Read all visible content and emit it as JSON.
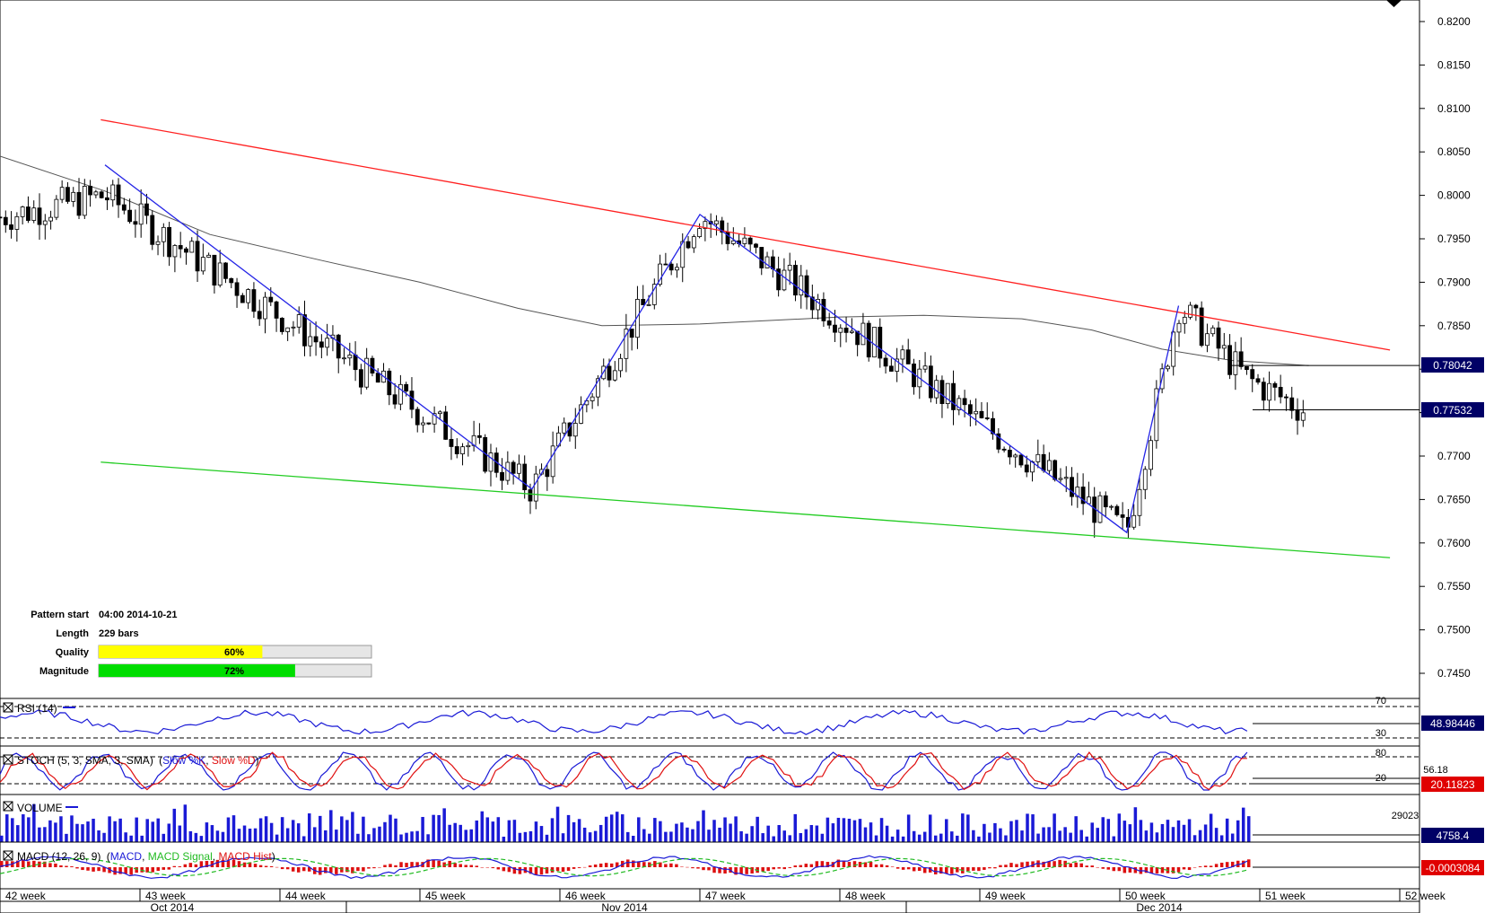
{
  "chart_data": {
    "type": "candlestick",
    "price_axis": {
      "ticks": [
        "0.8200",
        "0.8150",
        "0.8100",
        "0.8050",
        "0.8000",
        "0.7950",
        "0.7900",
        "0.7850",
        "0.7800",
        "0.7750",
        "0.7700",
        "0.7650",
        "0.7600",
        "0.7550",
        "0.7500",
        "0.7450"
      ],
      "ylim": [
        0.7415,
        0.8225
      ]
    },
    "price_labels": {
      "level_1": "0.78042",
      "level_2": "0.77532"
    },
    "price_label_values": [
      0.78042,
      0.77532
    ],
    "pattern_info": {
      "pattern_start_label": "Pattern start",
      "pattern_start_value": "04:00 2014-10-21",
      "length_label": "Length",
      "length_value": "229 bars",
      "quality_label": "Quality",
      "quality_value": "60%",
      "quality_fraction": 0.6,
      "magnitude_label": "Magnitude",
      "magnitude_value": "72%",
      "magnitude_fraction": 0.72
    },
    "zigzag": [
      {
        "week": 42.75,
        "price": 0.8035
      },
      {
        "week": 45.8,
        "price": 0.7662
      },
      {
        "week": 47.0,
        "price": 0.7978
      },
      {
        "week": 50.05,
        "price": 0.7612
      },
      {
        "week": 50.42,
        "price": 0.7873
      }
    ],
    "resistance_line": [
      {
        "week": 42.72,
        "price": 0.8087
      },
      {
        "week": 51.93,
        "price": 0.7822
      }
    ],
    "support_line": [
      {
        "week": 42.72,
        "price": 0.7693
      },
      {
        "week": 51.93,
        "price": 0.7583
      }
    ],
    "moving_average": [
      {
        "week": 42.0,
        "price": 0.8045
      },
      {
        "week": 42.75,
        "price": 0.8005
      },
      {
        "week": 43.5,
        "price": 0.7955
      },
      {
        "week": 44.3,
        "price": 0.7925
      },
      {
        "week": 45.0,
        "price": 0.79
      },
      {
        "week": 45.7,
        "price": 0.787
      },
      {
        "week": 46.3,
        "price": 0.785
      },
      {
        "week": 47.0,
        "price": 0.7852
      },
      {
        "week": 48.0,
        "price": 0.786
      },
      {
        "week": 48.6,
        "price": 0.7862
      },
      {
        "week": 49.3,
        "price": 0.7858
      },
      {
        "week": 49.8,
        "price": 0.7845
      },
      {
        "week": 50.3,
        "price": 0.7823
      },
      {
        "week": 50.8,
        "price": 0.781
      },
      {
        "week": 51.35,
        "price": 0.7804
      }
    ],
    "indicators": {
      "rsi": {
        "title": "RSI (14)",
        "upper": "70",
        "lower": "30",
        "value": "48.98446"
      },
      "stoch": {
        "title_prefix": "STOCH (5, 3, SMA, 3, SMA)",
        "series_1": "Slow %K",
        "series_2": "Slow %D",
        "upper": "80",
        "lower": "20",
        "value_1": "56.18",
        "value_2": "20.11823"
      },
      "volume": {
        "title": "VOLUME",
        "max": "29023",
        "value": "4758.4"
      },
      "macd": {
        "title_prefix": "MACD (12, 26, 9)",
        "series_1": "MACD",
        "series_2": "MACD Signal",
        "series_3": "MACD Hist",
        "value": "-0.0003084"
      }
    },
    "time_axis": {
      "weeks": [
        "42 week",
        "43 week",
        "44 week",
        "45 week",
        "46 week",
        "47 week",
        "48 week",
        "49 week",
        "50 week",
        "51 week",
        "52 week"
      ],
      "months": [
        "Oct 2014",
        "Nov 2014",
        "Dec 2014"
      ]
    }
  },
  "colors": {
    "up": "#ffffff",
    "down": "#000000",
    "resistance": "#ff2020",
    "support": "#22cc22",
    "zigzag": "#2424e6",
    "ma": "#555555",
    "rsi_line": "#1a1ad6",
    "stoch_k": "#1a1ad6",
    "stoch_d": "#e01010",
    "volume_bar": "#1a1ad6",
    "macd_line": "#1a1ad6",
    "macd_signal": "#22bb22",
    "macd_hist": "#dd1010",
    "label_bg": "#000066",
    "quality_fill": "#ffff00",
    "magnitude_fill": "#00dd00"
  }
}
